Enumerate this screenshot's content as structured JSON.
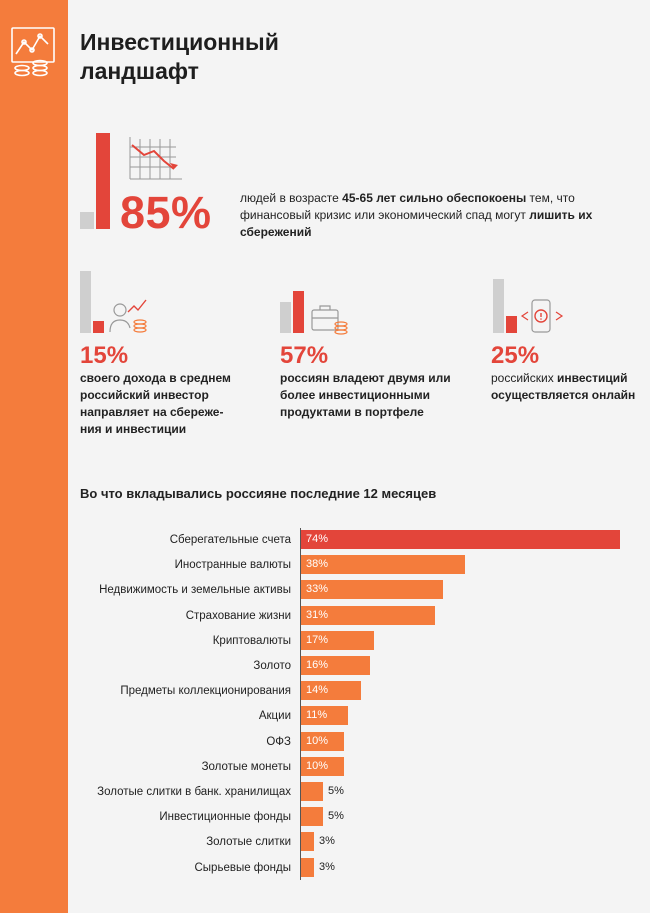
{
  "brand_color": "#f47c3c",
  "accent_color": "#e3453a",
  "header": {
    "title_line1": "Инвестиционный",
    "title_line2": "ландшафт"
  },
  "hero": {
    "percent": "85%",
    "text_a": "людей в возрасте ",
    "text_b": "45-65 лет сильно обеспокоены",
    "text_c": " тем, что финансовый кризис или экономический спад могут ",
    "text_d": "лишить их сбережений"
  },
  "stats": [
    {
      "percent": "15%",
      "text_a": "своего дохода в среднем российский инвестор направляет на сбереже-ния и инвестиции",
      "icon": "person-coins-icon"
    },
    {
      "percent": "57%",
      "text_a": "россиян владеют двумя или более инвестиционными продуктами в портфеле",
      "icon": "briefcase-coins-icon"
    },
    {
      "percent": "25%",
      "text_a": "российских ",
      "text_b": "инвестиций осуществляется онлайн",
      "icon": "phone-alert-icon"
    }
  ],
  "chart_data": {
    "type": "bar",
    "orientation": "horizontal",
    "title": "Во что вкладывались россияне последние 12 месяцев",
    "categories": [
      "Сберегательные счета",
      "Иностранные валюты",
      "Недвижимость и земельные активы",
      "Страхование жизни",
      "Криптовалюты",
      "Золото",
      "Предметы коллекционирования",
      "Акции",
      "ОФЗ",
      "Золотые монеты",
      "Золотые слитки в банк. хранилищах",
      "Инвестиционные фонды",
      "Золотые слитки",
      "Сырьевые фонды"
    ],
    "values": [
      74,
      38,
      33,
      31,
      17,
      16,
      14,
      11,
      10,
      10,
      5,
      5,
      3,
      3
    ],
    "labels": [
      "74%",
      "38%",
      "33%",
      "31%",
      "17%",
      "16%",
      "14%",
      "11%",
      "10%",
      "10%",
      "5%",
      "5%",
      "3%",
      "3%"
    ],
    "xlim": [
      0,
      74
    ],
    "highlight_index": 0
  }
}
